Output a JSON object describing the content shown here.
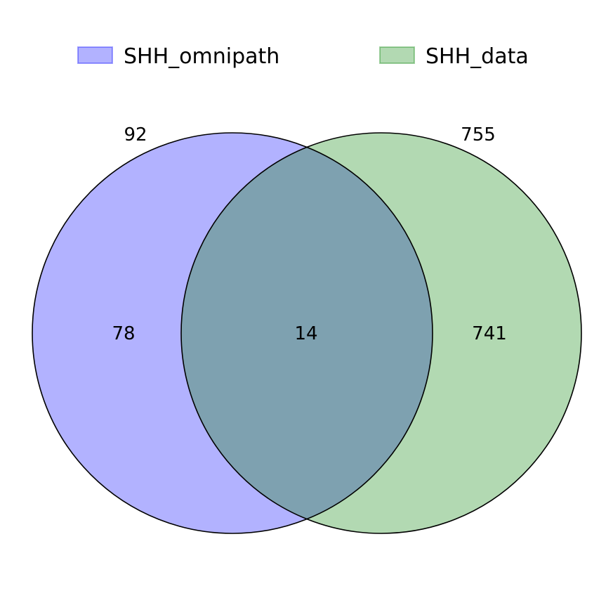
{
  "chart_data": {
    "type": "venn",
    "sets": [
      {
        "name": "SHH_omnipath",
        "total": 92,
        "only": 78,
        "color": "#0000ff",
        "fill_alpha": 0.3
      },
      {
        "name": "SHH_data",
        "total": 755,
        "only": 741,
        "color": "#008000",
        "fill_alpha": 0.3
      }
    ],
    "intersection": 14,
    "overlap_color": "#7ea1b0",
    "outline_color": "#000000",
    "legend_placement": "top"
  }
}
